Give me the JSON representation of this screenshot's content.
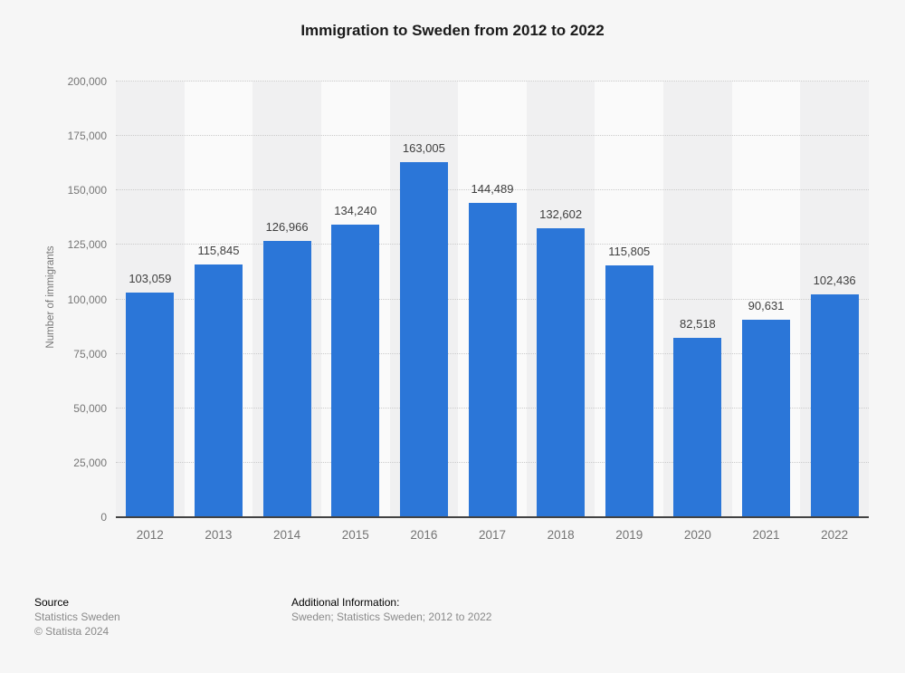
{
  "title": "Immigration to Sweden from 2012 to 2022",
  "chart_data": {
    "type": "bar",
    "categories": [
      "2012",
      "2013",
      "2014",
      "2015",
      "2016",
      "2017",
      "2018",
      "2019",
      "2020",
      "2021",
      "2022"
    ],
    "values": [
      103059,
      115845,
      126966,
      134240,
      163005,
      144489,
      132602,
      115805,
      82518,
      90631,
      102436
    ],
    "title": "Immigration to Sweden from 2012 to 2022",
    "xlabel": "",
    "ylabel": "Number of immigrants",
    "ylim": [
      0,
      200000
    ],
    "ytick_step": 25000,
    "grid": "horizontal-dotted",
    "legend": "none",
    "bar_color": "#2b76d8",
    "band_color_odd": "#f0f0f1",
    "band_color_even": "#fafafa"
  },
  "footer": {
    "source_label": "Source",
    "source_line1": "Statistics Sweden",
    "source_line2": "© Statista 2024",
    "additional_label": "Additional Information:",
    "additional_line": "Sweden; Statistics Sweden; 2012 to 2022"
  }
}
